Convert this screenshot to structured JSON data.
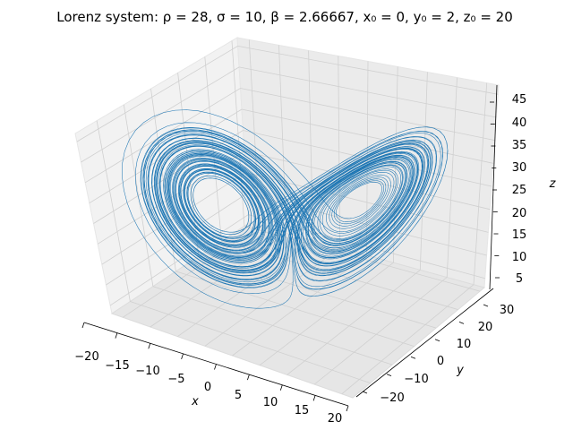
{
  "chart_data": {
    "type": "line",
    "projection": "3d",
    "title": "Lorenz system: ρ = 28, σ = 10, β = 2.66667, x₀ = 0, y₀ = 2, z₀ = 20",
    "xlabel": "x",
    "ylabel": "y",
    "zlabel": "z",
    "xlim": [
      -22,
      22
    ],
    "ylim": [
      -28,
      32
    ],
    "zlim": [
      3,
      47
    ],
    "x_ticks": [
      "−20",
      "−15",
      "−10",
      "−5",
      "0",
      "5",
      "10",
      "15",
      "20"
    ],
    "y_ticks": [
      "−20",
      "−10",
      "0",
      "10",
      "20",
      "30"
    ],
    "z_ticks": [
      "5",
      "10",
      "15",
      "20",
      "25",
      "30",
      "35",
      "40",
      "45"
    ],
    "grid": true,
    "system": {
      "rho": 28,
      "sigma": 10,
      "beta": 2.66667,
      "x0": 0,
      "y0": 2,
      "z0": 20
    },
    "line_color": "#1f77b4"
  }
}
